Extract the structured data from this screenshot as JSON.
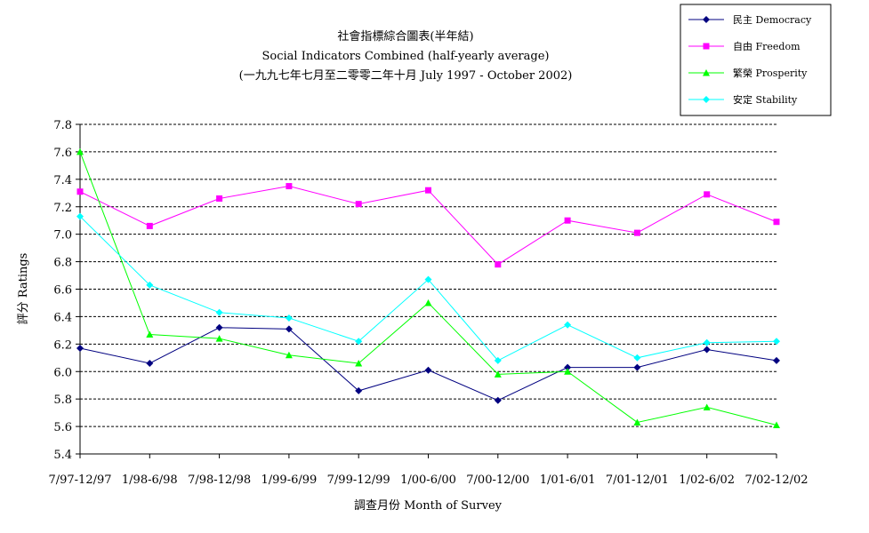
{
  "chart_data": {
    "type": "line",
    "title": "社會指標綜合圖表(半年結)",
    "subtitle": "Social Indicators Combined (half-yearly average)",
    "subtitle2": "(一九九七年七月至二零零二年十月 July 1997 - October 2002)",
    "xlabel": "調查月份 Month of Survey",
    "ylabel": "評分 Ratings",
    "ylim": [
      5.4,
      7.8
    ],
    "yticks": [
      "7.8",
      "7.6",
      "7.4",
      "7.2",
      "7.0",
      "6.8",
      "6.6",
      "6.4",
      "6.2",
      "6.0",
      "5.8",
      "5.6",
      "5.4"
    ],
    "grid": "horizontal-dashed",
    "legend_position": "top-right",
    "categories": [
      "7/97-12/97",
      "1/98-6/98",
      "7/98-12/98",
      "1/99-6/99",
      "7/99-12/99",
      "1/00-6/00",
      "7/00-12/00",
      "1/01-6/01",
      "7/01-12/01",
      "1/02-6/02",
      "7/02-12/02"
    ],
    "series": [
      {
        "name": "民主 Democracy",
        "color": "#000080",
        "marker": "diamond",
        "values": [
          6.17,
          6.06,
          6.32,
          6.31,
          5.86,
          6.01,
          5.79,
          6.03,
          6.03,
          6.16,
          6.08
        ]
      },
      {
        "name": "自由 Freedom",
        "color": "#ff00ff",
        "marker": "square",
        "values": [
          7.31,
          7.06,
          7.26,
          7.35,
          7.22,
          7.32,
          6.78,
          7.1,
          7.01,
          7.29,
          7.09
        ]
      },
      {
        "name": "繁榮 Prosperity",
        "color": "#00ff00",
        "marker": "triangle",
        "values": [
          7.6,
          6.27,
          6.24,
          6.12,
          6.06,
          6.5,
          5.98,
          6.0,
          5.63,
          5.74,
          5.61
        ]
      },
      {
        "name": "安定 Stability",
        "color": "#00ffff",
        "marker": "diamond",
        "values": [
          7.13,
          6.63,
          6.43,
          6.39,
          6.22,
          6.67,
          6.08,
          6.34,
          6.1,
          6.21,
          6.22
        ]
      }
    ]
  }
}
